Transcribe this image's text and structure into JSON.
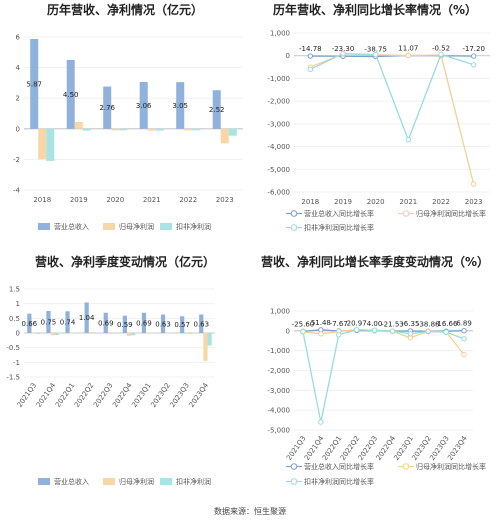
{
  "footer": "数据来源：恒生聚源",
  "colors": {
    "revenue": "#8fb1dc",
    "profit": "#f7d7a6",
    "deducted": "#a9e3e4",
    "rev_line": "#7ba0c9",
    "profit_line": "#f5cf96",
    "ded_line": "#98dcdd",
    "grid": "#eeeeee",
    "axis": "#bbbbbb"
  },
  "chart_data": [
    {
      "type": "bar",
      "title": "历年营收、净利情况（亿元）",
      "categories": [
        "2018",
        "2019",
        "2020",
        "2021",
        "2022",
        "2023"
      ],
      "ylim": [
        -4,
        6
      ],
      "yticks": [
        -4,
        -2,
        0,
        2,
        4,
        6
      ],
      "series": [
        {
          "name": "营业总收入",
          "color_key": "revenue",
          "values": [
            5.87,
            4.5,
            2.76,
            3.06,
            3.05,
            2.52
          ],
          "labels": [
            "5.87",
            "4.50",
            "2.76",
            "3.06",
            "3.05",
            "2.52"
          ]
        },
        {
          "name": "归母净利润",
          "color_key": "profit",
          "values": [
            -2.0,
            0.45,
            -0.1,
            -0.12,
            -0.1,
            -0.95
          ]
        },
        {
          "name": "扣非净利润",
          "color_key": "deducted",
          "values": [
            -2.1,
            -0.12,
            -0.1,
            -0.12,
            -0.1,
            -0.45
          ]
        }
      ],
      "legend": "bottom",
      "grid": true
    },
    {
      "type": "line",
      "title": "历年营收、净利同比增长率情况（%）",
      "categories": [
        "2018",
        "2019",
        "2020",
        "2021",
        "2022",
        "2023"
      ],
      "ylim": [
        -6000,
        1000
      ],
      "yticks": [
        -6000,
        -5000,
        -4000,
        -3000,
        -2000,
        -1000,
        0,
        1000
      ],
      "ytick_labels": [
        "-6,000",
        "-5,000",
        "-4,000",
        "-3,000",
        "-2,000",
        "-1,000",
        "0",
        "1,000"
      ],
      "series": [
        {
          "name": "营业总收入同比增长率",
          "color_key": "rev_line",
          "values": [
            -14.78,
            -23.3,
            -38.75,
            11.07,
            -0.52,
            -17.2
          ],
          "labels": [
            "-14.78",
            "-23.30",
            "-38.75",
            "11.07",
            "-0.52",
            "-17.20"
          ]
        },
        {
          "name": "归母净利润同比增长率",
          "color_key": "profit_line",
          "values": [
            -500,
            80,
            40,
            10,
            30,
            -5650
          ]
        },
        {
          "name": "扣非净利润同比增长率",
          "color_key": "ded_line",
          "values": [
            -600,
            90,
            50,
            -3700,
            60,
            -400
          ]
        }
      ],
      "legend": "bottom",
      "grid": true
    },
    {
      "type": "bar",
      "title": "营收、净利季度变动情况（亿元）",
      "categories": [
        "2021Q3",
        "2021Q4",
        "2022Q1",
        "2022Q2",
        "2022Q3",
        "2022Q4",
        "2023Q1",
        "2023Q2",
        "2023Q3",
        "2023Q4"
      ],
      "ylim": [
        -1.5,
        1.5
      ],
      "yticks": [
        -1.5,
        -1,
        -0.5,
        0,
        0.5,
        1,
        1.5
      ],
      "ytick_labels": [
        "-1.5",
        "-1",
        "-0.5",
        "0",
        "0.5",
        "1",
        "1.5"
      ],
      "series": [
        {
          "name": "营业总收入",
          "color_key": "revenue",
          "values": [
            0.66,
            0.75,
            0.74,
            1.04,
            0.69,
            0.59,
            0.69,
            0.63,
            0.57,
            0.63
          ],
          "labels": [
            "0.66",
            "0.75",
            "0.74",
            "1.04",
            "0.69",
            "0.59",
            "0.69",
            "0.63",
            "0.57",
            "0.63"
          ]
        },
        {
          "name": "归母净利润",
          "color_key": "profit",
          "values": [
            -0.02,
            -0.08,
            0.02,
            0.03,
            -0.03,
            -0.1,
            0.02,
            0.01,
            -0.03,
            -0.95
          ]
        },
        {
          "name": "扣非净利润",
          "color_key": "deducted",
          "values": [
            -0.03,
            -0.07,
            0.01,
            0.02,
            -0.02,
            -0.08,
            0.01,
            0.01,
            -0.03,
            -0.43
          ]
        }
      ],
      "legend": "bottom",
      "grid": true
    },
    {
      "type": "line",
      "title": "营收、净利同比增长率季度变动情况（%）",
      "categories": [
        "2021Q3",
        "2021Q4",
        "2022Q1",
        "2022Q2",
        "2022Q3",
        "2022Q4",
        "2023Q1",
        "2023Q2",
        "2023Q3",
        "2023Q4"
      ],
      "ylim": [
        -5000,
        1000
      ],
      "yticks": [
        -5000,
        -4000,
        -3000,
        -2000,
        -1000,
        0,
        1000
      ],
      "ytick_labels": [
        "-5,000",
        "-4,000",
        "-3,000",
        "-2,000",
        "-1,000",
        "0",
        "1,000"
      ],
      "series": [
        {
          "name": "营业总收入同比增长率",
          "color_key": "rev_line",
          "values": [
            -25.6,
            51.48,
            -7.67,
            20.97,
            4.0,
            -21.53,
            -6.35,
            -38.88,
            -16.66,
            6.89
          ],
          "labels": [
            "-25.60",
            "51.48",
            "-7.67",
            "20.97",
            "4.00",
            "-21.53",
            "-6.35",
            "-38.88",
            "-16.66",
            "6.89"
          ]
        },
        {
          "name": "归母净利润同比增长率",
          "color_key": "profit_line",
          "values": [
            -50,
            -150,
            -30,
            60,
            20,
            -20,
            -350,
            -20,
            -60,
            -1200
          ]
        },
        {
          "name": "扣非净利润同比增长率",
          "color_key": "ded_line",
          "values": [
            -40,
            -4600,
            -200,
            50,
            30,
            -10,
            -150,
            -30,
            -70,
            -400
          ]
        }
      ],
      "legend": "bottom",
      "grid": true
    }
  ]
}
